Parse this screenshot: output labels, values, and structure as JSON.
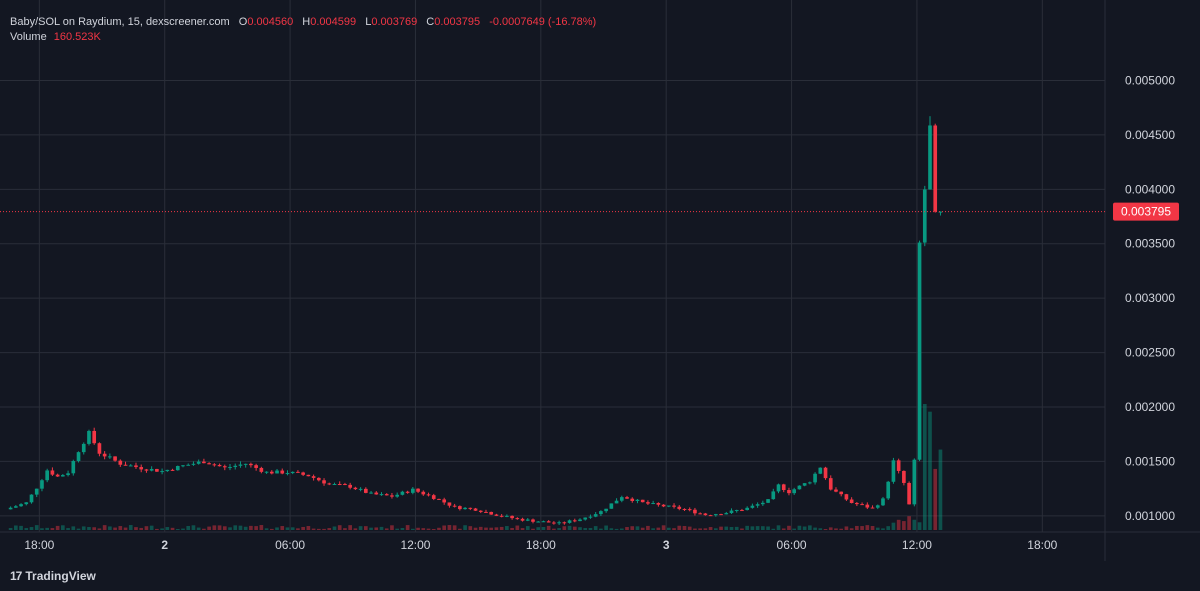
{
  "legend": {
    "symbol": "Baby/SOL on Raydium, 15, dexscreener.com",
    "o_label": "O",
    "o_value": "0.004560",
    "h_label": "H",
    "h_value": "0.004599",
    "l_label": "L",
    "l_value": "0.003769",
    "c_label": "C",
    "c_value": "0.003795",
    "change": "-0.0007649 (-16.78%)",
    "volume_label": "Volume",
    "volume_value": "160.523K"
  },
  "footer": {
    "brand": "TradingView",
    "logo_glyph": "17"
  },
  "colors": {
    "up": "#089981",
    "down": "#f23645",
    "bg": "#131722",
    "grid": "#2a2e39",
    "text": "#d1d4dc"
  },
  "chart_data": {
    "type": "candlestick",
    "interval": "15",
    "y_axis": {
      "range": [
        0.00087,
        0.00528
      ],
      "tick_labels": [
        "0.001000",
        "0.001500",
        "0.002000",
        "0.002500",
        "0.003000",
        "0.003500",
        "0.004000",
        "0.004500",
        "0.005000"
      ],
      "position": "right"
    },
    "x_axis": {
      "range": [
        "1 16:30",
        "3 21:00"
      ],
      "ticks": [
        {
          "t": "1 18:00",
          "label": "18:00"
        },
        {
          "t": "2 00:00",
          "label": "2"
        },
        {
          "t": "2 06:00",
          "label": "06:00"
        },
        {
          "t": "2 12:00",
          "label": "12:00"
        },
        {
          "t": "2 18:00",
          "label": "18:00"
        },
        {
          "t": "3 00:00",
          "label": "3"
        },
        {
          "t": "3 06:00",
          "label": "06:00"
        },
        {
          "t": "3 12:00",
          "label": "12:00"
        },
        {
          "t": "3 18:00",
          "label": "18:00"
        }
      ]
    },
    "last_price": "0.003795",
    "grid": true,
    "price_series": [
      {
        "t": "1 16:30",
        "p": 0.00106
      },
      {
        "t": "1 17:30",
        "p": 0.00112
      },
      {
        "t": "1 18:00",
        "p": 0.00126
      },
      {
        "t": "1 18:30",
        "p": 0.00142
      },
      {
        "t": "1 19:00",
        "p": 0.00136
      },
      {
        "t": "1 19:30",
        "p": 0.0014
      },
      {
        "t": "1 20:00",
        "p": 0.0016
      },
      {
        "t": "1 20:30",
        "p": 0.00176
      },
      {
        "t": "1 21:00",
        "p": 0.00158
      },
      {
        "t": "1 22:00",
        "p": 0.00148
      },
      {
        "t": "1 23:00",
        "p": 0.00144
      },
      {
        "t": "2 00:00",
        "p": 0.00141
      },
      {
        "t": "2 01:00",
        "p": 0.00146
      },
      {
        "t": "2 02:00",
        "p": 0.0015
      },
      {
        "t": "2 03:00",
        "p": 0.00144
      },
      {
        "t": "2 04:00",
        "p": 0.00148
      },
      {
        "t": "2 05:00",
        "p": 0.0014
      },
      {
        "t": "2 06:00",
        "p": 0.0014
      },
      {
        "t": "2 07:00",
        "p": 0.00137
      },
      {
        "t": "2 08:00",
        "p": 0.00129
      },
      {
        "t": "2 09:00",
        "p": 0.00127
      },
      {
        "t": "2 10:00",
        "p": 0.0012
      },
      {
        "t": "2 11:00",
        "p": 0.00118
      },
      {
        "t": "2 12:00",
        "p": 0.00124
      },
      {
        "t": "2 13:00",
        "p": 0.00117
      },
      {
        "t": "2 14:00",
        "p": 0.00108
      },
      {
        "t": "2 15:00",
        "p": 0.00106
      },
      {
        "t": "2 16:00",
        "p": 0.00101
      },
      {
        "t": "2 17:00",
        "p": 0.00097
      },
      {
        "t": "2 18:00",
        "p": 0.00095
      },
      {
        "t": "2 19:00",
        "p": 0.00093
      },
      {
        "t": "2 20:00",
        "p": 0.00097
      },
      {
        "t": "2 21:00",
        "p": 0.00104
      },
      {
        "t": "2 22:00",
        "p": 0.00118
      },
      {
        "t": "2 23:00",
        "p": 0.00112
      },
      {
        "t": "3 00:00",
        "p": 0.00109
      },
      {
        "t": "3 01:00",
        "p": 0.00106
      },
      {
        "t": "3 02:00",
        "p": 0.00101
      },
      {
        "t": "3 03:00",
        "p": 0.00103
      },
      {
        "t": "3 04:00",
        "p": 0.00107
      },
      {
        "t": "3 05:00",
        "p": 0.00114
      },
      {
        "t": "3 05:30",
        "p": 0.00128
      },
      {
        "t": "3 06:00",
        "p": 0.00122
      },
      {
        "t": "3 07:00",
        "p": 0.00132
      },
      {
        "t": "3 07:30",
        "p": 0.00145
      },
      {
        "t": "3 08:00",
        "p": 0.00125
      },
      {
        "t": "3 09:00",
        "p": 0.00112
      },
      {
        "t": "3 10:00",
        "p": 0.00107
      },
      {
        "t": "3 10:30",
        "p": 0.00115
      },
      {
        "t": "3 11:00",
        "p": 0.0015
      },
      {
        "t": "3 11:30",
        "p": 0.0013
      },
      {
        "t": "3 11:45",
        "p": 0.0011
      },
      {
        "t": "3 12:00",
        "p": 0.0015
      },
      {
        "t": "3 12:15",
        "p": 0.0035
      },
      {
        "t": "3 12:30",
        "p": 0.004
      },
      {
        "t": "3 12:45",
        "p": 0.00456
      },
      {
        "t": "3 13:00",
        "p": 0.003795
      }
    ]
  }
}
